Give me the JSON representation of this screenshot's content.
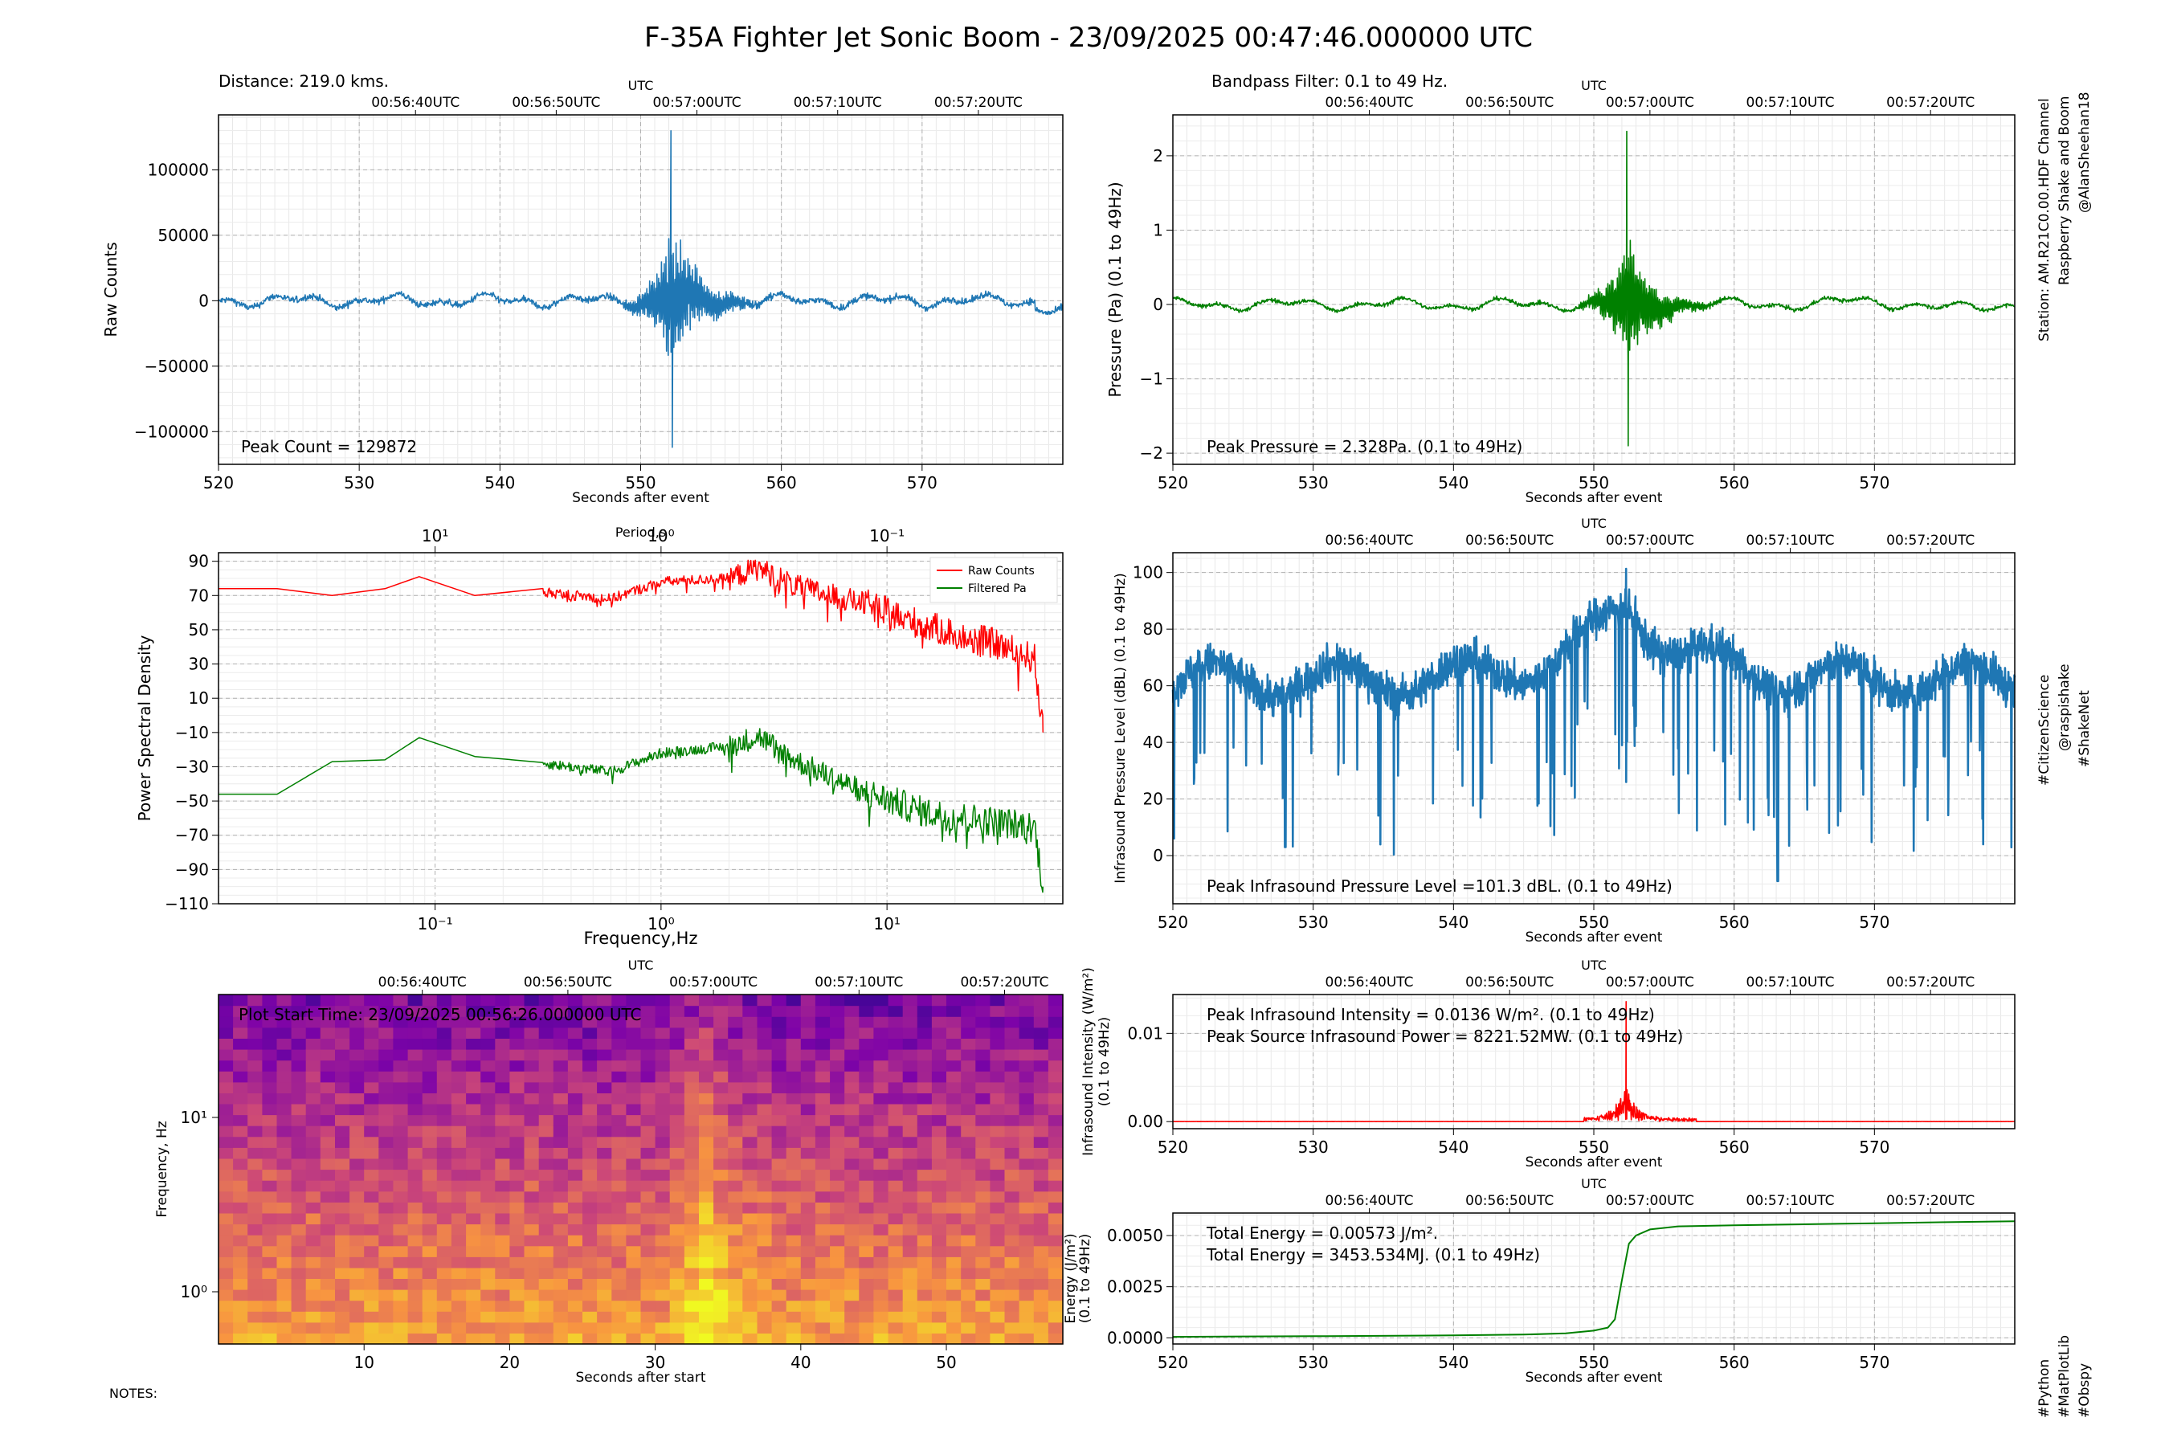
{
  "title": "F-35A Fighter Jet Sonic Boom - 23/09/2025 00:47:46.000000 UTC",
  "title_color": "#0000ff",
  "colors": {
    "raw": "#1f77b4",
    "filtered": "#008000",
    "psd_raw": "#ff0000",
    "psd_filt": "#008000",
    "intensity": "#ff0000",
    "energy": "#008000"
  },
  "side_text": {
    "station": "Station: AM.R21C0.00.HDF Channel",
    "shake": "Raspberry Shake and Boom",
    "shake_color": "#ff0000",
    "author": "@AlanSheehan18",
    "tag1": "#CitizenScience",
    "tag2": "@raspishake",
    "tag3": "#ShakeNet",
    "tag4": "#Python",
    "tag5": "#MatPlotLib",
    "tag6": "#Obspy"
  },
  "notes": "NOTES:",
  "utc_label": "UTC",
  "utc_ticks": [
    "00:56:40UTC",
    "00:56:50UTC",
    "00:57:00UTC",
    "00:57:10UTC",
    "00:57:20UTC"
  ],
  "time_xlabel": "Seconds after event",
  "chart_data": [
    {
      "id": "raw",
      "type": "line",
      "title": "Distance: 219.0 kms.",
      "ylabel": "Raw Counts",
      "xlabel": "Seconds after event",
      "xlim": [
        520,
        580
      ],
      "ylim": [
        -125000,
        142000
      ],
      "x_ticks": [
        "520",
        "530",
        "540",
        "550",
        "560",
        "570"
      ],
      "y_ticks": [
        "−100000",
        "−50000",
        "0",
        "50000",
        "100000"
      ],
      "annotation": "Peak Count = 129872",
      "peak": 129872,
      "trough": -112000,
      "peak_time": 552.2,
      "grid": true
    },
    {
      "id": "filtered",
      "type": "line",
      "title": "Bandpass Filter: 0.1 to 49 Hz.",
      "ylabel": "Pressure (Pa) (0.1 to 49Hz)",
      "xlabel": "Seconds after event",
      "xlim": [
        520,
        580
      ],
      "ylim": [
        -2.15,
        2.55
      ],
      "x_ticks": [
        "520",
        "530",
        "540",
        "550",
        "560",
        "570"
      ],
      "y_ticks": [
        "−2",
        "−1",
        "0",
        "1",
        "2"
      ],
      "annotation": "Peak Pressure = 2.328Pa. (0.1 to 49Hz)",
      "peak": 2.328,
      "trough": -1.9,
      "peak_time": 552.4,
      "grid": true
    },
    {
      "id": "psd",
      "type": "line",
      "ylabel": "Power Spectral Density",
      "xlabel": "Frequency,Hz",
      "top_label": "Period,s",
      "x_scale": "log",
      "xlim": [
        0.011,
        60
      ],
      "ylim": [
        -110,
        95
      ],
      "x_ticks": [
        "10⁻¹",
        "10⁰",
        "10¹"
      ],
      "top_ticks": [
        "10¹",
        "10⁰",
        "10⁻¹"
      ],
      "y_ticks": [
        "−110",
        "−90",
        "−70",
        "−50",
        "−30",
        "−10",
        "10",
        "30",
        "50",
        "70",
        "90"
      ],
      "series": [
        {
          "name": "Raw Counts",
          "x": [
            0.011,
            0.02,
            0.035,
            0.06,
            0.085,
            0.15,
            0.3,
            0.6,
            1,
            2,
            2.7,
            4,
            8,
            15,
            30,
            45,
            49
          ],
          "values": [
            74,
            74,
            70,
            74,
            81,
            70,
            72,
            68,
            78,
            80,
            86,
            75,
            65,
            52,
            42,
            33,
            -10
          ]
        },
        {
          "name": "Filtered Pa",
          "x": [
            0.011,
            0.02,
            0.035,
            0.06,
            0.085,
            0.15,
            0.3,
            0.6,
            1,
            2,
            2.7,
            4,
            8,
            15,
            30,
            45,
            49
          ],
          "values": [
            -46,
            -46,
            -27,
            -26,
            -13,
            -24,
            -28,
            -33,
            -22,
            -18,
            -12,
            -27,
            -45,
            -57,
            -62,
            -65,
            -100
          ]
        }
      ],
      "legend": "top-right",
      "grid": true
    },
    {
      "id": "infrasound",
      "type": "line",
      "ylabel": "Infrasound Pressure Level (dBL) (0.1 to 49Hz)",
      "xlabel": "Seconds after event",
      "xlim": [
        520,
        580
      ],
      "ylim": [
        -17,
        107
      ],
      "x_ticks": [
        "520",
        "530",
        "540",
        "550",
        "560",
        "570"
      ],
      "y_ticks": [
        "0",
        "20",
        "40",
        "60",
        "80",
        "100"
      ],
      "annotation": "Peak Infrasound Pressure Level =101.3 dBL. (0.1 to 49Hz)",
      "peak": 101.3,
      "grid": true
    },
    {
      "id": "spectrogram",
      "type": "heatmap",
      "ylabel": "Frequency, Hz",
      "xlabel": "Seconds after start",
      "xlim": [
        0,
        58
      ],
      "x_ticks": [
        "10",
        "20",
        "30",
        "40",
        "50"
      ],
      "y_ticks": [
        "10⁰",
        "10¹"
      ],
      "annotation": "Plot Start Time:  23/09/2025 00:56:26.000000 UTC",
      "event_time": 32,
      "colormap": "plasma"
    },
    {
      "id": "intensity",
      "type": "line",
      "ylabel": "Infrasound Intensity (W/m²) (0.1 to 49Hz)",
      "xlabel": "Seconds after event",
      "xlim": [
        520,
        580
      ],
      "ylim": [
        -0.0008,
        0.0144
      ],
      "x_ticks": [
        "520",
        "530",
        "540",
        "550",
        "560",
        "570"
      ],
      "y_ticks": [
        "0.00",
        "0.01"
      ],
      "annotation1": "Peak Infrasound Intensity = 0.0136 W/m². (0.1 to 49Hz)",
      "annotation2": "Peak Source Infrasound Power = 8221.52MW. (0.1 to 49Hz)",
      "peak": 0.0136,
      "grid": true
    },
    {
      "id": "energy",
      "type": "line",
      "ylabel": "Energy (J/m²) (0.1 to 49Hz)",
      "xlabel": "Seconds after event",
      "xlim": [
        520,
        580
      ],
      "ylim": [
        -0.0003,
        0.0061
      ],
      "x_ticks": [
        "520",
        "530",
        "540",
        "550",
        "560",
        "570"
      ],
      "y_ticks": [
        "0.0000",
        "0.0025",
        "0.0050"
      ],
      "annotation1": "Total Energy = 0.00573 J/m².",
      "annotation2": "Total Energy = 3453.534MJ. (0.1 to 49Hz)",
      "x": [
        520,
        530,
        540,
        545,
        548,
        550,
        551,
        551.5,
        552,
        552.5,
        553,
        554,
        556,
        560,
        570,
        580
      ],
      "values": [
        5e-05,
        8e-05,
        0.00012,
        0.00016,
        0.00022,
        0.00035,
        0.0005,
        0.0009,
        0.0028,
        0.0046,
        0.005,
        0.0053,
        0.00545,
        0.0055,
        0.0056,
        0.0057
      ],
      "grid": true
    }
  ]
}
